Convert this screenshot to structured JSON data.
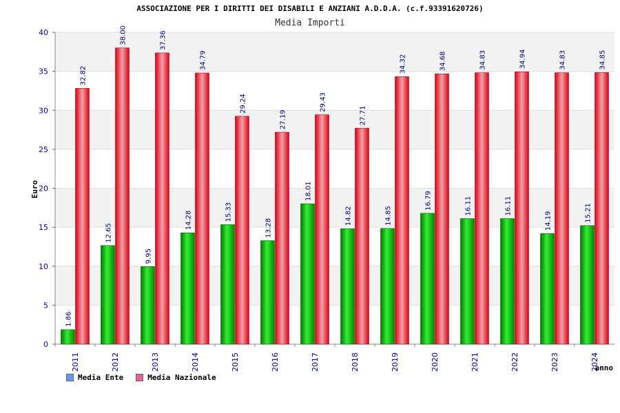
{
  "chart_data": {
    "type": "bar",
    "title": "ASSOCIAZIONE PER I DIRITTI DEI DISABILI E ANZIANI A.D.D.A. (c.f.93391620726)",
    "subtitle": "Media Importi",
    "xlabel": "anno",
    "ylabel": "Euro",
    "ylim": [
      0,
      40
    ],
    "yticks": [
      0,
      5,
      10,
      15,
      20,
      25,
      30,
      35,
      40
    ],
    "categories": [
      "2011",
      "2012",
      "2013",
      "2014",
      "2015",
      "2016",
      "2017",
      "2018",
      "2019",
      "2020",
      "2021",
      "2022",
      "2023",
      "2024"
    ],
    "series": [
      {
        "name": "Media Ente",
        "color": "#00aa00",
        "values": [
          1.86,
          12.65,
          9.95,
          14.28,
          15.33,
          13.28,
          18.01,
          14.82,
          14.85,
          16.79,
          16.11,
          16.11,
          14.19,
          15.21
        ]
      },
      {
        "name": "Media Nazionale",
        "color": "#ee1122",
        "values": [
          32.82,
          38.0,
          37.36,
          34.79,
          29.24,
          27.19,
          29.43,
          27.71,
          34.32,
          34.68,
          34.83,
          34.94,
          34.83,
          34.85
        ]
      }
    ],
    "data_labels": [
      [
        "1.86",
        "12.65",
        "9.95",
        "14.28",
        "15.33",
        "13.28",
        "18.01",
        "14.82",
        "14.85",
        "16.79",
        "16.11",
        "16.11",
        "14.19",
        "15.21"
      ],
      [
        "32.82",
        "38.00",
        "37.36",
        "34.79",
        "29.24",
        "27.19",
        "29.43",
        "27.71",
        "34.32",
        "34.68",
        "34.83",
        "34.94",
        "34.83",
        "34.85"
      ]
    ],
    "grid": true,
    "legend": {
      "placement": "bottom-left",
      "items": [
        {
          "label": "Media Ente",
          "color": "#6699ee"
        },
        {
          "label": "Media Nazionale",
          "color": "#dd6699"
        }
      ]
    }
  }
}
